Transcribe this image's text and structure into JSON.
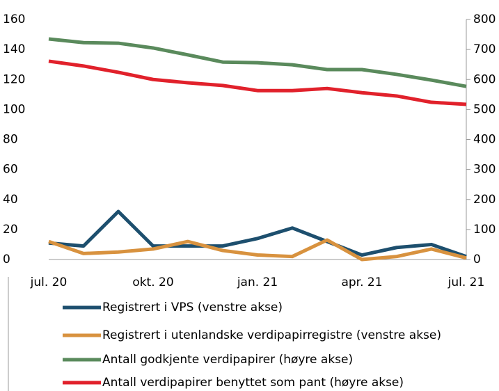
{
  "chart_data": {
    "type": "line",
    "categories": [
      "jul. 20",
      null,
      null,
      "okt. 20",
      null,
      null,
      "jan. 21",
      null,
      null,
      "apr. 21",
      null,
      null,
      "jul. 21"
    ],
    "ylim": [
      0,
      160
    ],
    "yticks": [
      0,
      20,
      40,
      60,
      80,
      100,
      120,
      140,
      160
    ],
    "y2lim": [
      0,
      800
    ],
    "y2ticks": [
      0,
      100,
      200,
      300,
      400,
      500,
      600,
      700,
      800
    ],
    "series": [
      {
        "name": "Registrert i VPS (venstre akse)",
        "color": "#1d4f6e",
        "values": [
          11,
          9,
          32,
          9,
          9,
          9,
          14,
          21,
          12,
          3,
          8,
          10,
          2
        ]
      },
      {
        "name": "Registrert i utenlandske verdipapirregistre (venstre akse)",
        "color": "#d8923f",
        "values": [
          12,
          4,
          5,
          7,
          12,
          6,
          3,
          2,
          13,
          0,
          2,
          7,
          1
        ]
      },
      {
        "name": "Antall godkjente verdipapirer (høyre akse)",
        "color": "#5a8a5c",
        "axis": "y2",
        "values": [
          735,
          723,
          721,
          705,
          682,
          658,
          656,
          649,
          633,
          633,
          617,
          598,
          577
        ]
      },
      {
        "name": "Antall verdipapirer benyttet som pant (høyre akse)",
        "color": "#e1212b",
        "axis": "y2",
        "values": [
          661,
          645,
          624,
          600,
          589,
          580,
          563,
          563,
          570,
          556,
          545,
          524,
          517
        ]
      }
    ]
  }
}
